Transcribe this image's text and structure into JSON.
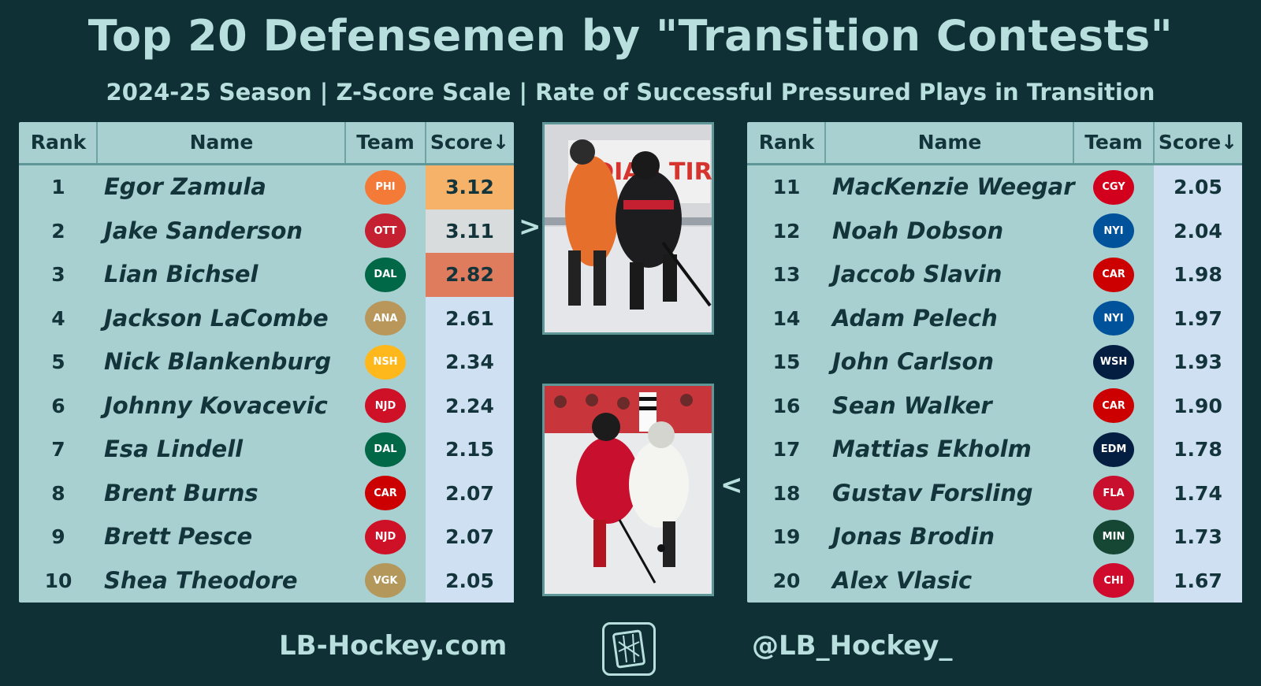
{
  "title": "Top 20 Defensemen by \"Transition Contests\"",
  "subtitle": "2024-25 Season | Z-Score Scale | Rate of Successful Pressured Plays in Transition",
  "headers": {
    "rank": "Rank",
    "name": "Name",
    "team": "Team",
    "score": "Score↓"
  },
  "left_rows": [
    {
      "rank": "1",
      "name": "Egor Zamula",
      "team": "PHI",
      "logo_icon": "flyers-logo-icon",
      "logo_color": "#f47a38",
      "score": "3.12",
      "highlight": "#f7b26a"
    },
    {
      "rank": "2",
      "name": "Jake Sanderson",
      "team": "OTT",
      "logo_icon": "senators-logo-icon",
      "logo_color": "#c52032",
      "score": "3.11",
      "highlight": "#d8dcdc"
    },
    {
      "rank": "3",
      "name": "Lian Bichsel",
      "team": "DAL",
      "logo_icon": "stars-logo-icon",
      "logo_color": "#006847",
      "score": "2.82",
      "highlight": "#e07c5e"
    },
    {
      "rank": "4",
      "name": "Jackson LaCombe",
      "team": "ANA",
      "logo_icon": "ducks-logo-icon",
      "logo_color": "#b9975b",
      "score": "2.61",
      "highlight": ""
    },
    {
      "rank": "5",
      "name": "Nick Blankenburg",
      "team": "NSH",
      "logo_icon": "predators-logo-icon",
      "logo_color": "#ffb81c",
      "score": "2.34",
      "highlight": ""
    },
    {
      "rank": "6",
      "name": "Johnny Kovacevic",
      "team": "NJD",
      "logo_icon": "devils-logo-icon",
      "logo_color": "#ce1126",
      "score": "2.24",
      "highlight": ""
    },
    {
      "rank": "7",
      "name": "Esa Lindell",
      "team": "DAL",
      "logo_icon": "stars-logo-icon",
      "logo_color": "#006847",
      "score": "2.15",
      "highlight": ""
    },
    {
      "rank": "8",
      "name": "Brent Burns",
      "team": "CAR",
      "logo_icon": "hurricanes-logo-icon",
      "logo_color": "#cc0000",
      "score": "2.07",
      "highlight": ""
    },
    {
      "rank": "9",
      "name": "Brett Pesce",
      "team": "NJD",
      "logo_icon": "devils-logo-icon",
      "logo_color": "#ce1126",
      "score": "2.07",
      "highlight": ""
    },
    {
      "rank": "10",
      "name": "Shea Theodore",
      "team": "VGK",
      "logo_icon": "golden-knights-logo-icon",
      "logo_color": "#b4975a",
      "score": "2.05",
      "highlight": ""
    }
  ],
  "right_rows": [
    {
      "rank": "11",
      "name": "MacKenzie Weegar",
      "team": "CGY",
      "logo_icon": "flames-logo-icon",
      "logo_color": "#d2001c",
      "score": "2.05",
      "highlight": ""
    },
    {
      "rank": "12",
      "name": "Noah Dobson",
      "team": "NYI",
      "logo_icon": "islanders-logo-icon",
      "logo_color": "#00539b",
      "score": "2.04",
      "highlight": ""
    },
    {
      "rank": "13",
      "name": "Jaccob Slavin",
      "team": "CAR",
      "logo_icon": "hurricanes-logo-icon",
      "logo_color": "#cc0000",
      "score": "1.98",
      "highlight": ""
    },
    {
      "rank": "14",
      "name": "Adam Pelech",
      "team": "NYI",
      "logo_icon": "islanders-logo-icon",
      "logo_color": "#00539b",
      "score": "1.97",
      "highlight": ""
    },
    {
      "rank": "15",
      "name": "John Carlson",
      "team": "WSH",
      "logo_icon": "capitals-logo-icon",
      "logo_color": "#041e42",
      "score": "1.93",
      "highlight": ""
    },
    {
      "rank": "16",
      "name": "Sean Walker",
      "team": "CAR",
      "logo_icon": "hurricanes-logo-icon",
      "logo_color": "#cc0000",
      "score": "1.90",
      "highlight": ""
    },
    {
      "rank": "17",
      "name": "Mattias Ekholm",
      "team": "EDM",
      "logo_icon": "oilers-logo-icon",
      "logo_color": "#041e42",
      "score": "1.78",
      "highlight": ""
    },
    {
      "rank": "18",
      "name": "Gustav Forsling",
      "team": "FLA",
      "logo_icon": "panthers-logo-icon",
      "logo_color": "#c8102e",
      "score": "1.74",
      "highlight": ""
    },
    {
      "rank": "19",
      "name": "Jonas Brodin",
      "team": "MIN",
      "logo_icon": "wild-logo-icon",
      "logo_color": "#154734",
      "score": "1.73",
      "highlight": ""
    },
    {
      "rank": "20",
      "name": "Alex Vlasic",
      "team": "CHI",
      "logo_icon": "blackhawks-logo-icon",
      "logo_color": "#cf0a2c",
      "score": "1.67",
      "highlight": ""
    }
  ],
  "footer": {
    "site": "LB-Hockey.com",
    "handle": "@LB_Hockey_"
  },
  "colors": {
    "background": "#0f3136",
    "table": "#a9d0d1",
    "score_column": "#cfe0f3",
    "text_light": "#b8dedd",
    "text_dark": "#12343a"
  }
}
